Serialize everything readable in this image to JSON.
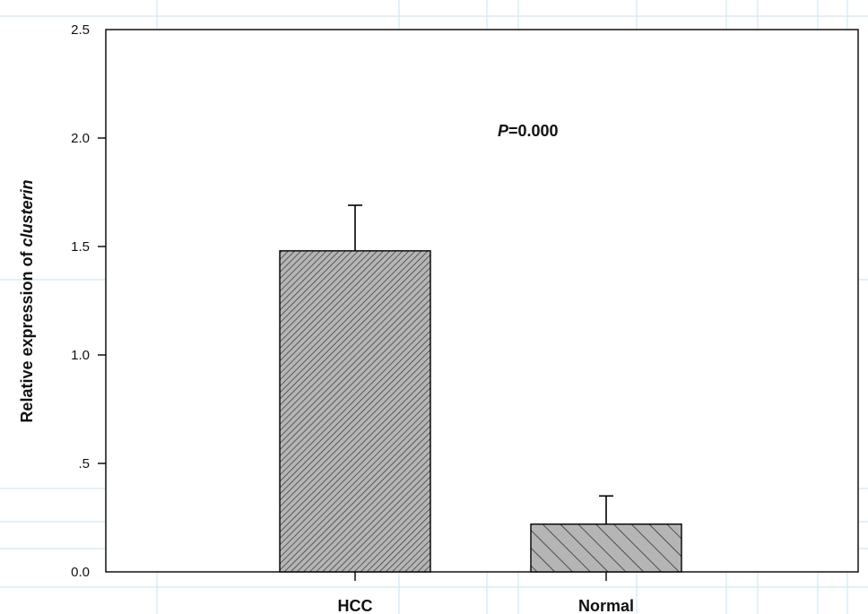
{
  "chart_data": {
    "type": "bar",
    "categories": [
      "HCC",
      "Normal"
    ],
    "values": [
      1.48,
      0.22
    ],
    "errors": [
      0.21,
      0.13
    ],
    "ylabel": "Relative expression of",
    "ylabel_italic": "clusterin",
    "ylim": [
      0,
      2.5
    ],
    "yticks": [
      0,
      0.5,
      1.0,
      1.5,
      2.0,
      2.5
    ],
    "ytick_labels": [
      "0.0",
      ".5",
      "1.0",
      "1.5",
      "2.0",
      "2.5"
    ],
    "annotation": {
      "italic": "P",
      "text": "=0.000"
    },
    "bar_patterns": [
      "dense-hatch",
      "sparse-hatch"
    ],
    "colors": {
      "bar_fill": "#a9a9a9",
      "axis": "#000000",
      "background_grid": "#cfe8f2"
    }
  }
}
